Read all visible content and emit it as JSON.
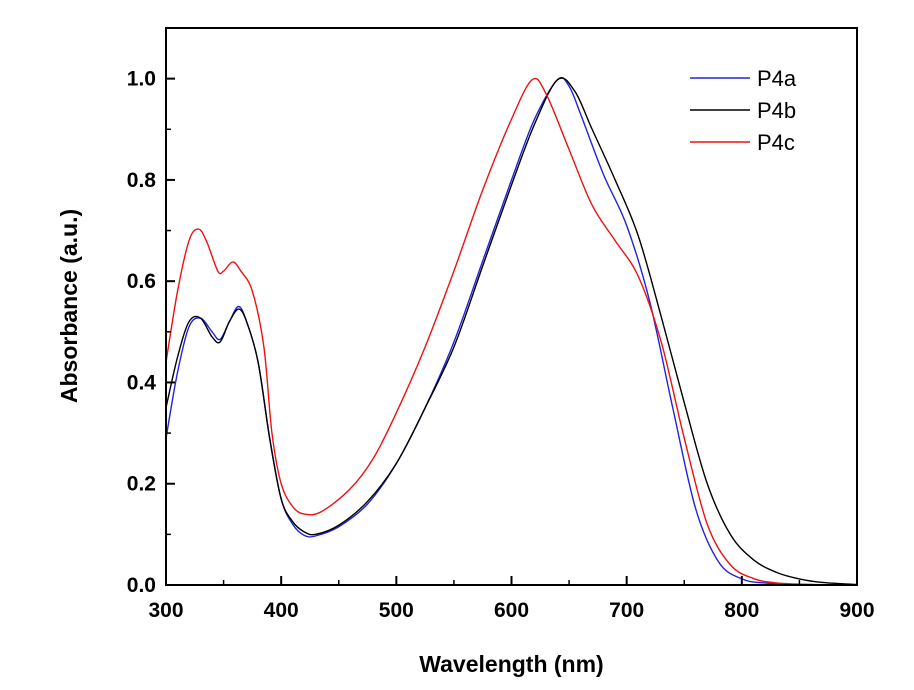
{
  "chart_data": {
    "type": "line",
    "title": "",
    "xlabel": "Wavelength (nm)",
    "ylabel": "Absorbance (a.u.)",
    "xlim": [
      300,
      900
    ],
    "ylim": [
      0,
      1.1
    ],
    "x_ticks": [
      300,
      400,
      500,
      600,
      700,
      800,
      900
    ],
    "y_ticks": [
      0.0,
      0.2,
      0.4,
      0.6,
      0.8,
      1.0
    ],
    "x_tick_labels": [
      "300",
      "400",
      "500",
      "600",
      "700",
      "800",
      "900"
    ],
    "y_tick_labels": [
      "0.0",
      "0.2",
      "0.4",
      "0.6",
      "0.8",
      "1.0"
    ],
    "grid": false,
    "legend_position": "top-right",
    "series": [
      {
        "name": "P4a",
        "color": "#2222dd",
        "points": [
          [
            300,
            0.29
          ],
          [
            310,
            0.42
          ],
          [
            320,
            0.51
          ],
          [
            330,
            0.527
          ],
          [
            340,
            0.5
          ],
          [
            347,
            0.485
          ],
          [
            355,
            0.52
          ],
          [
            363,
            0.55
          ],
          [
            370,
            0.52
          ],
          [
            380,
            0.44
          ],
          [
            390,
            0.29
          ],
          [
            400,
            0.17
          ],
          [
            410,
            0.12
          ],
          [
            420,
            0.098
          ],
          [
            430,
            0.097
          ],
          [
            450,
            0.115
          ],
          [
            475,
            0.16
          ],
          [
            500,
            0.24
          ],
          [
            525,
            0.35
          ],
          [
            550,
            0.48
          ],
          [
            575,
            0.64
          ],
          [
            600,
            0.8
          ],
          [
            620,
            0.92
          ],
          [
            640,
            0.998
          ],
          [
            650,
            0.985
          ],
          [
            660,
            0.93
          ],
          [
            680,
            0.81
          ],
          [
            700,
            0.71
          ],
          [
            720,
            0.56
          ],
          [
            740,
            0.35
          ],
          [
            760,
            0.15
          ],
          [
            780,
            0.045
          ],
          [
            800,
            0.012
          ],
          [
            820,
            0.004
          ],
          [
            850,
            0.001
          ],
          [
            900,
            0.0
          ]
        ]
      },
      {
        "name": "P4b",
        "color": "#000000",
        "points": [
          [
            300,
            0.35
          ],
          [
            310,
            0.45
          ],
          [
            320,
            0.52
          ],
          [
            330,
            0.527
          ],
          [
            340,
            0.49
          ],
          [
            347,
            0.48
          ],
          [
            355,
            0.52
          ],
          [
            363,
            0.545
          ],
          [
            370,
            0.52
          ],
          [
            380,
            0.44
          ],
          [
            390,
            0.29
          ],
          [
            400,
            0.17
          ],
          [
            410,
            0.125
          ],
          [
            420,
            0.105
          ],
          [
            430,
            0.1
          ],
          [
            450,
            0.118
          ],
          [
            475,
            0.165
          ],
          [
            500,
            0.24
          ],
          [
            525,
            0.35
          ],
          [
            550,
            0.47
          ],
          [
            575,
            0.63
          ],
          [
            600,
            0.79
          ],
          [
            620,
            0.91
          ],
          [
            640,
            0.998
          ],
          [
            655,
            0.975
          ],
          [
            670,
            0.9
          ],
          [
            690,
            0.8
          ],
          [
            710,
            0.69
          ],
          [
            730,
            0.53
          ],
          [
            750,
            0.36
          ],
          [
            770,
            0.2
          ],
          [
            790,
            0.1
          ],
          [
            810,
            0.05
          ],
          [
            830,
            0.025
          ],
          [
            850,
            0.012
          ],
          [
            870,
            0.005
          ],
          [
            900,
            0.001
          ]
        ]
      },
      {
        "name": "P4c",
        "color": "#ee1111",
        "points": [
          [
            300,
            0.44
          ],
          [
            310,
            0.58
          ],
          [
            320,
            0.68
          ],
          [
            328,
            0.703
          ],
          [
            335,
            0.68
          ],
          [
            345,
            0.62
          ],
          [
            350,
            0.62
          ],
          [
            358,
            0.638
          ],
          [
            365,
            0.62
          ],
          [
            375,
            0.58
          ],
          [
            385,
            0.47
          ],
          [
            392,
            0.3
          ],
          [
            400,
            0.2
          ],
          [
            410,
            0.155
          ],
          [
            420,
            0.14
          ],
          [
            435,
            0.145
          ],
          [
            460,
            0.19
          ],
          [
            480,
            0.25
          ],
          [
            500,
            0.34
          ],
          [
            525,
            0.47
          ],
          [
            550,
            0.62
          ],
          [
            575,
            0.78
          ],
          [
            600,
            0.92
          ],
          [
            618,
            0.998
          ],
          [
            630,
            0.97
          ],
          [
            650,
            0.86
          ],
          [
            670,
            0.75
          ],
          [
            690,
            0.68
          ],
          [
            710,
            0.61
          ],
          [
            730,
            0.48
          ],
          [
            750,
            0.29
          ],
          [
            770,
            0.12
          ],
          [
            790,
            0.04
          ],
          [
            810,
            0.013
          ],
          [
            830,
            0.004
          ],
          [
            860,
            0.001
          ],
          [
            900,
            0.0
          ]
        ]
      }
    ]
  }
}
